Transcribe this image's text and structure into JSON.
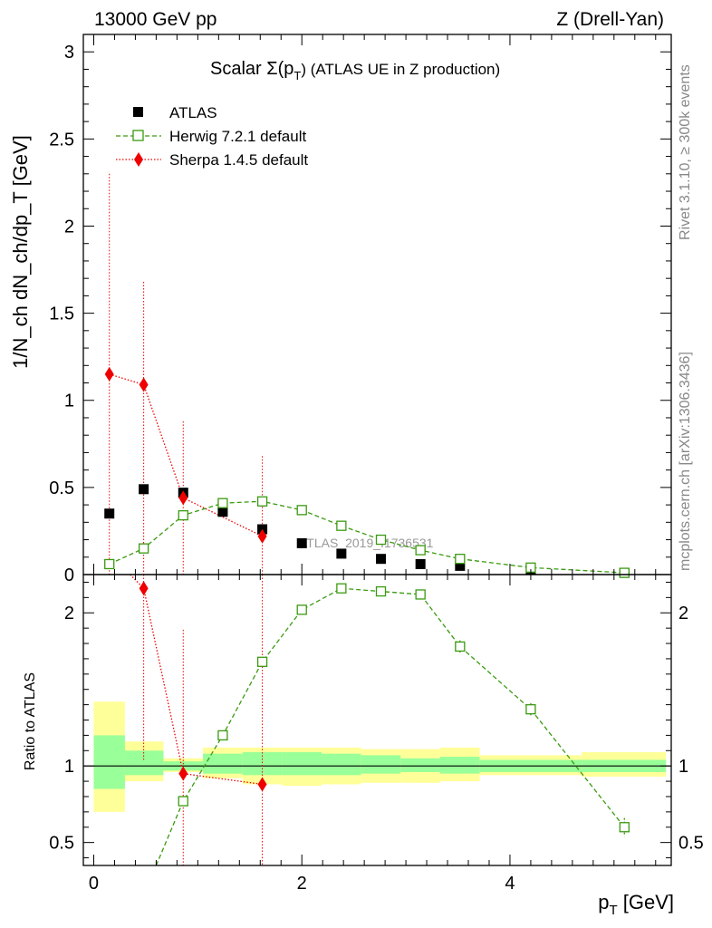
{
  "header": {
    "left": "13000 GeV pp",
    "right": "Z (Drell-Yan)"
  },
  "side_text": {
    "rivet": "Rivet 3.1.10, ≥ 300k events",
    "mcplots": "mcplots.cern.ch [arXiv:1306.3436]"
  },
  "watermark": "ATLAS_2019_I1736531",
  "colors": {
    "atlas": "#000000",
    "herwig": "#3a9a10",
    "sherpa": "#ee0000",
    "band_inner": "#99ff99",
    "band_outer": "#ffff99"
  },
  "chart_data": [
    {
      "type": "scatter",
      "panel": "main",
      "title_prefix": "Scalar Σ(p",
      "title_sub": "T",
      "title_suffix": ") (ATLAS UE in Z production)",
      "ylabel": "1/N_ch dN_ch/dp_T [GeV]",
      "xlim": [
        -0.1,
        5.55
      ],
      "ylim": [
        0,
        3.1
      ],
      "yticks": [
        0,
        0.5,
        1,
        1.5,
        2,
        2.5,
        3
      ],
      "yticklabels": [
        "0",
        "0.5",
        "1",
        "1.5",
        "2",
        "2.5",
        "3"
      ],
      "legend": [
        "ATLAS",
        "Herwig 7.2.1 default",
        "Sherpa 1.4.5 default"
      ],
      "series": [
        {
          "name": "ATLAS",
          "style": "square-filled",
          "x": [
            0.15,
            0.48,
            0.86,
            1.24,
            1.62,
            2.0,
            2.38,
            2.76,
            3.14,
            3.52,
            4.2,
            5.1
          ],
          "y": [
            0.35,
            0.49,
            0.47,
            0.36,
            0.26,
            0.18,
            0.12,
            0.09,
            0.06,
            0.05,
            0.03,
            0.01
          ]
        },
        {
          "name": "Herwig 7.2.1 default",
          "style": "square-open-dashed",
          "x": [
            0.15,
            0.48,
            0.86,
            1.24,
            1.62,
            2.0,
            2.38,
            2.76,
            3.14,
            3.52,
            4.2,
            5.1
          ],
          "y": [
            0.06,
            0.15,
            0.34,
            0.41,
            0.42,
            0.37,
            0.28,
            0.2,
            0.14,
            0.09,
            0.04,
            0.01
          ]
        },
        {
          "name": "Sherpa 1.4.5 default",
          "style": "diamond-dotted",
          "x": [
            0.15,
            0.48,
            0.86,
            1.62
          ],
          "y": [
            1.15,
            1.09,
            0.44,
            0.22
          ],
          "err_hi": [
            2.3,
            1.68,
            0.88,
            0.68
          ],
          "err_lo": [
            0.0,
            0.0,
            0.0,
            0.0
          ]
        }
      ]
    },
    {
      "type": "line",
      "panel": "ratio",
      "ylabel": "Ratio to ATLAS",
      "xlabel_main": "p",
      "xlabel_sub": "T",
      "xlabel_unit": " [GeV]",
      "xlim": [
        -0.1,
        5.55
      ],
      "ylim": [
        0.35,
        2.25
      ],
      "xticks": [
        0,
        2,
        4
      ],
      "xticklabels": [
        "0",
        "2",
        "4"
      ],
      "yticks": [
        0.5,
        1,
        2
      ],
      "yticklabels": [
        "0.5",
        "1",
        "2"
      ],
      "bins": [
        0,
        0.3,
        0.67,
        1.05,
        1.43,
        1.81,
        2.19,
        2.57,
        2.95,
        3.33,
        3.71,
        4.69,
        5.5
      ],
      "band_inner": [
        [
          0.85,
          1.2
        ],
        [
          0.94,
          1.1
        ],
        [
          0.97,
          1.03
        ],
        [
          0.95,
          1.08
        ],
        [
          0.94,
          1.09
        ],
        [
          0.94,
          1.09
        ],
        [
          0.94,
          1.08
        ],
        [
          0.95,
          1.07
        ],
        [
          0.96,
          1.05
        ],
        [
          0.95,
          1.06
        ],
        [
          0.96,
          1.04
        ],
        [
          0.96,
          1.04
        ]
      ],
      "band_outer": [
        [
          0.7,
          1.42
        ],
        [
          0.9,
          1.16
        ],
        [
          0.96,
          1.05
        ],
        [
          0.92,
          1.12
        ],
        [
          0.88,
          1.12
        ],
        [
          0.87,
          1.12
        ],
        [
          0.88,
          1.12
        ],
        [
          0.89,
          1.11
        ],
        [
          0.89,
          1.11
        ],
        [
          0.9,
          1.12
        ],
        [
          0.94,
          1.07
        ],
        [
          0.93,
          1.09
        ]
      ],
      "series": [
        {
          "name": "Herwig 7.2.1 default",
          "x": [
            0.6,
            0.86,
            1.24,
            1.62,
            2.0,
            2.38,
            2.76,
            3.14,
            3.52,
            4.2,
            5.1
          ],
          "y": [
            0.35,
            0.77,
            1.2,
            1.68,
            2.02,
            2.16,
            2.14,
            2.12,
            1.78,
            1.37,
            0.6
          ],
          "markers": [
            false,
            true,
            true,
            true,
            true,
            true,
            true,
            true,
            true,
            true,
            true
          ],
          "err": [
            0,
            0,
            0,
            0,
            0,
            0,
            0,
            0,
            0.04,
            0.04,
            0.06
          ]
        },
        {
          "name": "Sherpa 1.4.5 default",
          "x": [
            0.35,
            0.48,
            0.86,
            1.62
          ],
          "y": [
            2.25,
            2.16,
            0.95,
            0.88
          ],
          "markers": [
            false,
            true,
            true,
            true
          ],
          "err_hi": [
            0,
            2.25,
            1.89,
            2.25
          ],
          "err_lo": [
            0,
            1.04,
            0.35,
            0.35
          ]
        }
      ]
    }
  ]
}
